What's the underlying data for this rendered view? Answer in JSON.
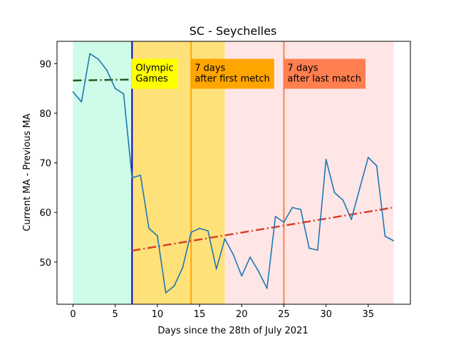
{
  "chart_data": {
    "type": "line",
    "title": "SC - Seychelles",
    "xlabel": "Days since the 28th of July 2021",
    "ylabel": "Current MA - Previous MA",
    "xlim": [
      -1.9,
      40
    ],
    "ylim": [
      41.5,
      94.5
    ],
    "xticks": [
      0,
      5,
      10,
      15,
      20,
      25,
      30,
      35
    ],
    "yticks": [
      50,
      60,
      70,
      80,
      90
    ],
    "grid": false,
    "x": [
      0,
      1,
      2,
      3,
      4,
      5,
      6,
      7,
      8,
      9,
      10,
      11,
      12,
      13,
      14,
      15,
      16,
      17,
      18,
      19,
      20,
      21,
      22,
      23,
      24,
      25,
      26,
      27,
      28,
      29,
      30,
      31,
      32,
      33,
      34,
      35,
      36,
      37,
      38
    ],
    "series": [
      {
        "values": [
          84.3,
          82.3,
          92.0,
          90.9,
          88.7,
          85.0,
          83.9,
          67.0,
          67.5,
          56.8,
          55.3,
          43.8,
          45.2,
          48.9,
          56.0,
          56.8,
          56.3,
          48.6,
          54.7,
          51.5,
          47.2,
          51.0,
          48.1,
          44.7,
          59.2,
          58.0,
          61.0,
          60.6,
          52.8,
          52.4,
          70.7,
          64.0,
          62.5,
          58.6,
          64.9,
          71.1,
          69.4,
          55.2,
          54.3
        ],
        "color": "#1f77b4"
      }
    ],
    "trend_lines": [
      {
        "x": [
          0,
          7
        ],
        "y": [
          86.6,
          86.8
        ],
        "color": "#1a5e20",
        "style": "dash-dot"
      },
      {
        "x": [
          7,
          38
        ],
        "y": [
          52.3,
          61.0
        ],
        "color": "#d9402a",
        "style": "dash-dot"
      }
    ],
    "regions": [
      {
        "x": [
          0,
          7
        ],
        "color": "#cffbe9"
      },
      {
        "x": [
          7,
          18
        ],
        "color": "#ffe17a"
      },
      {
        "x": [
          18,
          38
        ],
        "color": "#ffe6e6"
      }
    ],
    "vlines": [
      {
        "x": 7,
        "color": "#0000cc"
      },
      {
        "x": 14,
        "color": "#ffa500"
      },
      {
        "x": 25,
        "color": "#ff7f50"
      }
    ],
    "annotations": [
      {
        "lines": [
          "Olympic",
          "Games"
        ],
        "x": 7,
        "y": 88.1,
        "bg": "#ffff00"
      },
      {
        "lines": [
          "7 days",
          "after first metch"
        ],
        "x": 14,
        "y": 88.1,
        "bg": "#ffa500"
      },
      {
        "lines": [
          "7 days",
          "after last match"
        ],
        "x": 25,
        "y": 88.1,
        "bg": "#ff7f50"
      }
    ]
  }
}
